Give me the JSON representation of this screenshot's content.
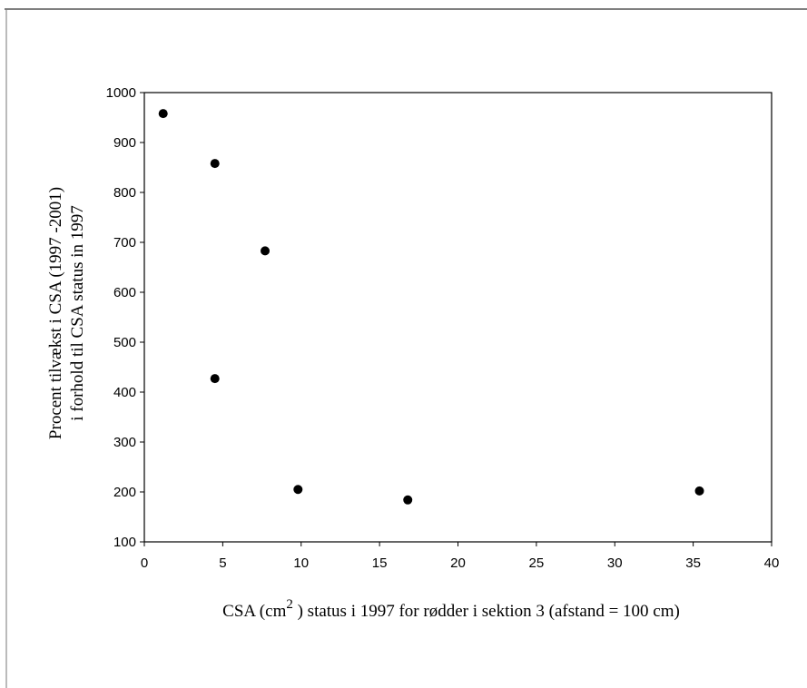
{
  "chart_data": {
    "type": "scatter",
    "title": "",
    "xlabel_parts": {
      "before": "CSA (cm",
      "superscript": "2",
      "after": " ) status i 1997 for rødder i sektion 3 (afstand = 100 cm)"
    },
    "ylabel_lines": [
      "Procent tilvækst i CSA (1997 -2001)",
      "i forhold til CSA status in 1997"
    ],
    "xlim": [
      0,
      40
    ],
    "ylim": [
      100,
      1000
    ],
    "xticks": [
      "0",
      "5",
      "10",
      "15",
      "20",
      "25",
      "30",
      "35",
      "40"
    ],
    "yticks": [
      "100",
      "200",
      "300",
      "400",
      "500",
      "600",
      "700",
      "800",
      "900",
      "1000"
    ],
    "grid": false,
    "marker_color": "#000000",
    "points": [
      {
        "x": 1.2,
        "y": 958
      },
      {
        "x": 4.5,
        "y": 858
      },
      {
        "x": 7.7,
        "y": 683
      },
      {
        "x": 4.5,
        "y": 427
      },
      {
        "x": 9.8,
        "y": 205
      },
      {
        "x": 16.8,
        "y": 184
      },
      {
        "x": 35.4,
        "y": 202
      }
    ]
  }
}
